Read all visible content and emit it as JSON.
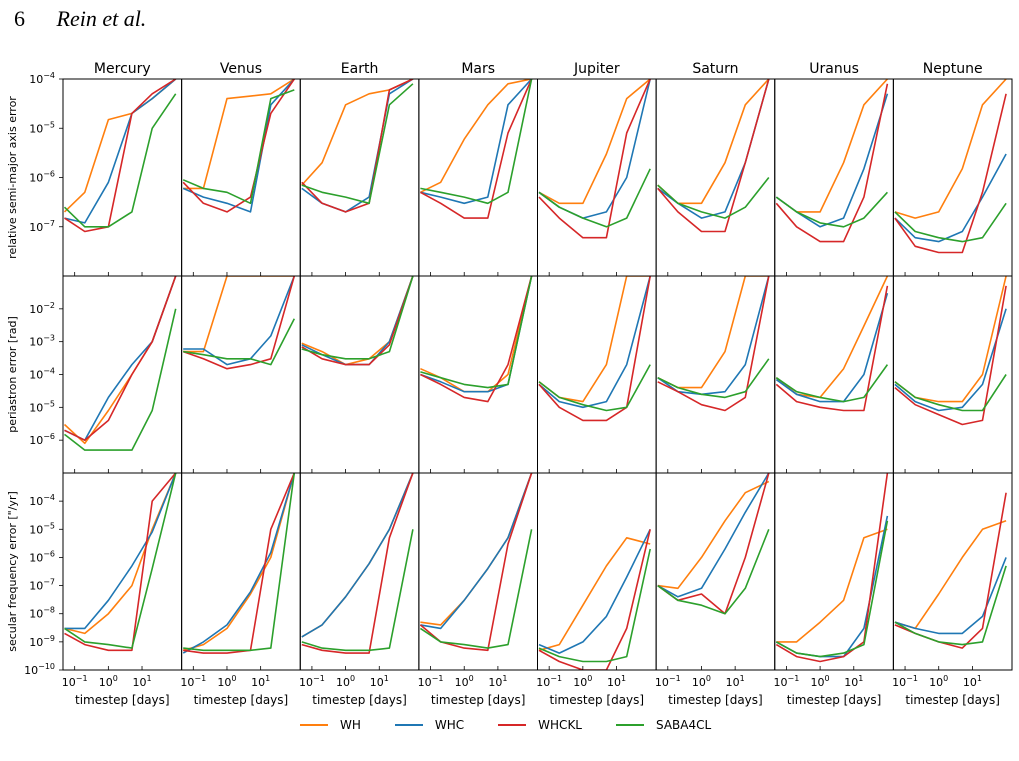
{
  "header": {
    "page_number": "6",
    "authors": "Rein et al."
  },
  "chart_data": {
    "type": "line",
    "planets": [
      "Mercury",
      "Venus",
      "Earth",
      "Mars",
      "Jupiter",
      "Saturn",
      "Uranus",
      "Neptune"
    ],
    "xlabel": "timestep [days]",
    "x_scale": "log",
    "x_ticks": [
      {
        "value": 0.1,
        "base": "10",
        "exp": "−1"
      },
      {
        "value": 1,
        "base": "10",
        "exp": "0"
      },
      {
        "value": 10,
        "base": "10",
        "exp": "1"
      }
    ],
    "series_names": [
      "WH",
      "WHC",
      "WHCKL",
      "SABA4CL"
    ],
    "colors": {
      "WH": "#ff7f0e",
      "WHC": "#1f77b4",
      "WHCKL": "#d62728",
      "SABA4CL": "#2ca02c"
    },
    "rows": [
      {
        "ylabel": "relative semi-major axis error",
        "y_scale": "log",
        "ylim": [
          1e-08,
          0.0001
        ],
        "y_ticks": [
          {
            "value": 1e-07,
            "base": "10",
            "exp": "−7"
          },
          {
            "value": 1e-06,
            "base": "10",
            "exp": "−6"
          },
          {
            "value": 1e-05,
            "base": "10",
            "exp": "−5"
          },
          {
            "value": 0.0001,
            "base": "10",
            "exp": "−4"
          }
        ]
      },
      {
        "ylabel": "periastron error [rad]",
        "y_scale": "log",
        "ylim": [
          1e-07,
          0.1
        ],
        "y_ticks": [
          {
            "value": 1e-06,
            "base": "10",
            "exp": "−6"
          },
          {
            "value": 1e-05,
            "base": "10",
            "exp": "−5"
          },
          {
            "value": 0.0001,
            "base": "10",
            "exp": "−4"
          },
          {
            "value": 0.001,
            "base": "10",
            "exp": "−3"
          },
          {
            "value": 0.01,
            "base": "10",
            "exp": "−2"
          }
        ]
      },
      {
        "ylabel": "secular frequency error [\"/yr]",
        "y_scale": "log",
        "ylim": [
          1e-10,
          0.001
        ],
        "y_ticks": [
          {
            "value": 1e-10,
            "base": "10",
            "exp": "−10"
          },
          {
            "value": 1e-09,
            "base": "10",
            "exp": "−9"
          },
          {
            "value": 1e-08,
            "base": "10",
            "exp": "−8"
          },
          {
            "value": 1e-07,
            "base": "10",
            "exp": "−7"
          },
          {
            "value": 1e-06,
            "base": "10",
            "exp": "−6"
          },
          {
            "value": 1e-05,
            "base": "10",
            "exp": "−5"
          },
          {
            "value": 0.0001,
            "base": "10",
            "exp": "−4"
          }
        ]
      }
    ],
    "xlim": [
      0.045,
      150
    ],
    "series_x": [
      0.05,
      0.2,
      1,
      5,
      20,
      100
    ],
    "panels": [
      [
        {
          "WH": [
            2e-07,
            5e-07,
            1.5e-05,
            2e-05,
            4e-05,
            0.0001
          ],
          "WHC": [
            1.5e-07,
            1.2e-07,
            8e-07,
            2e-05,
            4e-05,
            0.0001
          ],
          "WHCKL": [
            1.5e-07,
            8e-08,
            1e-07,
            2e-05,
            5e-05,
            0.0001
          ],
          "SABA4CL": [
            2.5e-07,
            1e-07,
            1e-07,
            2e-07,
            1e-05,
            5e-05
          ]
        },
        {
          "WH": [
            6e-07,
            6e-07,
            4e-05,
            4.5e-05,
            5e-05,
            0.0001
          ],
          "WHC": [
            6e-07,
            4e-07,
            3e-07,
            2e-07,
            3e-05,
            0.0001
          ],
          "WHCKL": [
            8e-07,
            3e-07,
            2e-07,
            4e-07,
            2e-05,
            0.0001
          ],
          "SABA4CL": [
            9e-07,
            6e-07,
            5e-07,
            3e-07,
            4e-05,
            6e-05
          ]
        },
        {
          "WH": [
            7e-07,
            2e-06,
            3e-05,
            5e-05,
            6e-05,
            0.0001
          ],
          "WHC": [
            6e-07,
            3e-07,
            2e-07,
            4e-07,
            5e-05,
            0.0001
          ],
          "WHCKL": [
            8e-07,
            3e-07,
            2e-07,
            3e-07,
            6e-05,
            0.0001
          ],
          "SABA4CL": [
            7e-07,
            5e-07,
            4e-07,
            3e-07,
            3e-05,
            8e-05
          ]
        },
        {
          "WH": [
            5e-07,
            8e-07,
            6e-06,
            3e-05,
            8e-05,
            0.0001
          ],
          "WHC": [
            5e-07,
            4e-07,
            3e-07,
            4e-07,
            3e-05,
            0.0001
          ],
          "WHCKL": [
            5e-07,
            3e-07,
            1.5e-07,
            1.5e-07,
            8e-06,
            0.0001
          ],
          "SABA4CL": [
            6e-07,
            5e-07,
            4e-07,
            3e-07,
            5e-07,
            0.0001
          ]
        },
        {
          "WH": [
            5e-07,
            3e-07,
            3e-07,
            3e-06,
            4e-05,
            0.0001
          ],
          "WHC": [
            5e-07,
            2.5e-07,
            1.5e-07,
            2e-07,
            1e-06,
            0.0001
          ],
          "WHCKL": [
            4e-07,
            1.5e-07,
            6e-08,
            6e-08,
            8e-06,
            0.0001
          ],
          "SABA4CL": [
            5e-07,
            2.5e-07,
            1.5e-07,
            1e-07,
            1.5e-07,
            1.5e-06
          ]
        },
        {
          "WH": [
            7e-07,
            3e-07,
            3e-07,
            2e-06,
            3e-05,
            0.0001
          ],
          "WHC": [
            6e-07,
            3e-07,
            1.5e-07,
            2e-07,
            2e-06,
            0.0001
          ],
          "WHCKL": [
            6e-07,
            2e-07,
            8e-08,
            8e-08,
            2e-06,
            0.0001
          ],
          "SABA4CL": [
            7e-07,
            3e-07,
            2e-07,
            1.5e-07,
            2.5e-07,
            1e-06
          ]
        },
        {
          "WH": [
            4e-07,
            2e-07,
            2e-07,
            2e-06,
            3e-05,
            0.0001
          ],
          "WHC": [
            4e-07,
            2e-07,
            1e-07,
            1.5e-07,
            1.5e-06,
            5e-05
          ],
          "WHCKL": [
            3e-07,
            1e-07,
            5e-08,
            5e-08,
            4e-07,
            8e-05
          ],
          "SABA4CL": [
            4e-07,
            2e-07,
            1.2e-07,
            1e-07,
            1.5e-07,
            5e-07
          ]
        },
        {
          "WH": [
            2e-07,
            1.5e-07,
            2e-07,
            1.5e-06,
            3e-05,
            0.0001
          ],
          "WHC": [
            1.5e-07,
            6e-08,
            5e-08,
            8e-08,
            4e-07,
            3e-06
          ],
          "WHCKL": [
            1.5e-07,
            4e-08,
            3e-08,
            3e-08,
            5e-07,
            5e-05
          ],
          "SABA4CL": [
            2e-07,
            8e-08,
            6e-08,
            5e-08,
            6e-08,
            3e-07
          ]
        }
      ],
      [
        {
          "WH": [
            3e-06,
            8e-07,
            8e-06,
            0.0001,
            0.001,
            0.1
          ],
          "WHC": [
            2e-06,
            1e-06,
            2e-05,
            0.0002,
            0.001,
            0.1
          ],
          "WHCKL": [
            2e-06,
            1e-06,
            4e-06,
            0.0001,
            0.001,
            0.1
          ],
          "SABA4CL": [
            1.5e-06,
            5e-07,
            5e-07,
            5e-07,
            8e-06,
            0.01
          ]
        },
        {
          "WH": [
            0.0005,
            0.0005,
            0.1,
            0.1,
            0.1,
            0.1
          ],
          "WHC": [
            0.0006,
            0.0006,
            0.0002,
            0.0003,
            0.0015,
            0.1
          ],
          "WHCKL": [
            0.0005,
            0.0003,
            0.00015,
            0.0002,
            0.0003,
            0.1
          ],
          "SABA4CL": [
            0.0005,
            0.0004,
            0.0003,
            0.0003,
            0.0002,
            0.005
          ]
        },
        {
          "WH": [
            0.0009,
            0.0005,
            0.0002,
            0.0003,
            0.001,
            0.1
          ],
          "WHC": [
            0.0008,
            0.0004,
            0.0002,
            0.0002,
            0.001,
            0.1
          ],
          "WHCKL": [
            0.0007,
            0.0003,
            0.0002,
            0.0002,
            0.0008,
            0.1
          ],
          "SABA4CL": [
            0.0006,
            0.0004,
            0.0003,
            0.0003,
            0.0005,
            0.1
          ]
        },
        {
          "WH": [
            0.00015,
            8e-05,
            3e-05,
            3e-05,
            0.0001,
            0.1
          ],
          "WHC": [
            0.0001,
            6e-05,
            3e-05,
            3e-05,
            5e-05,
            0.1
          ],
          "WHCKL": [
            0.0001,
            5e-05,
            2e-05,
            1.5e-05,
            0.0002,
            0.1
          ],
          "SABA4CL": [
            0.00012,
            8e-05,
            5e-05,
            4e-05,
            5e-05,
            0.1
          ]
        },
        {
          "WH": [
            6e-05,
            2e-05,
            1.5e-05,
            0.0002,
            0.1,
            0.1
          ],
          "WHC": [
            5e-05,
            1.5e-05,
            1e-05,
            1.5e-05,
            0.0002,
            0.1
          ],
          "WHCKL": [
            5e-05,
            1e-05,
            4e-06,
            4e-06,
            1e-05,
            0.1
          ],
          "SABA4CL": [
            6e-05,
            2e-05,
            1.2e-05,
            8e-06,
            1e-05,
            0.0002
          ]
        },
        {
          "WH": [
            8e-05,
            4e-05,
            4e-05,
            0.0005,
            0.1,
            0.1
          ],
          "WHC": [
            8e-05,
            3e-05,
            2.5e-05,
            3e-05,
            0.0002,
            0.1
          ],
          "WHCKL": [
            6e-05,
            3e-05,
            1.2e-05,
            8e-06,
            2e-05,
            0.1
          ],
          "SABA4CL": [
            8e-05,
            4e-05,
            2.5e-05,
            2e-05,
            3e-05,
            0.0003
          ]
        },
        {
          "WH": [
            8e-05,
            2.5e-05,
            2e-05,
            0.00015,
            0.003,
            0.1
          ],
          "WHC": [
            7e-05,
            2.5e-05,
            1.5e-05,
            1.5e-05,
            0.0001,
            0.03
          ],
          "WHCKL": [
            5e-05,
            1.5e-05,
            1e-05,
            8e-06,
            8e-06,
            0.05
          ],
          "SABA4CL": [
            8e-05,
            3e-05,
            2e-05,
            1.5e-05,
            2e-05,
            0.0002
          ]
        },
        {
          "WH": [
            6e-05,
            2e-05,
            1.5e-05,
            1.5e-05,
            0.0001,
            0.1
          ],
          "WHC": [
            5e-05,
            1.5e-05,
            8e-06,
            1e-05,
            5e-05,
            0.01
          ],
          "WHCKL": [
            4e-05,
            1.2e-05,
            6e-06,
            3e-06,
            4e-06,
            0.05
          ],
          "SABA4CL": [
            6e-05,
            2e-05,
            1.2e-05,
            8e-06,
            8e-06,
            0.0001
          ]
        }
      ],
      [
        {
          "WH": [
            3e-09,
            2e-09,
            1e-08,
            1e-07,
            1e-05,
            0.001
          ],
          "WHC": [
            3e-09,
            3e-09,
            3e-08,
            5e-07,
            8e-06,
            0.001
          ],
          "WHCKL": [
            2e-09,
            8e-10,
            5e-10,
            5e-10,
            0.0001,
            0.001
          ],
          "SABA4CL": [
            3e-09,
            1e-09,
            8e-10,
            6e-10,
            4e-07,
            0.001
          ]
        },
        {
          "WH": [
            5e-10,
            8e-10,
            3e-09,
            5e-08,
            1e-06,
            0.001
          ],
          "WHC": [
            4e-10,
            1e-09,
            4e-09,
            6e-08,
            1.5e-06,
            0.001
          ],
          "WHCKL": [
            5e-10,
            4e-10,
            4e-10,
            5e-10,
            1e-05,
            0.001
          ],
          "SABA4CL": [
            6e-10,
            5e-10,
            5e-10,
            5e-10,
            6e-10,
            0.001
          ]
        },
        {
          "WH": [
            1.5e-09,
            4e-09,
            4e-08,
            6e-07,
            1e-05,
            0.001
          ],
          "WHC": [
            1.5e-09,
            4e-09,
            4e-08,
            6e-07,
            1e-05,
            0.001
          ],
          "WHCKL": [
            8e-10,
            5e-10,
            4e-10,
            4e-10,
            5e-06,
            0.001
          ],
          "SABA4CL": [
            1e-09,
            6e-10,
            5e-10,
            5e-10,
            6e-10,
            1e-05
          ]
        },
        {
          "WH": [
            5e-09,
            4e-09,
            3e-08,
            4e-07,
            5e-06,
            0.001
          ],
          "WHC": [
            4e-09,
            3e-09,
            3e-08,
            4e-07,
            5e-06,
            0.001
          ],
          "WHCKL": [
            4e-09,
            1e-09,
            6e-10,
            5e-10,
            3e-06,
            0.001
          ],
          "SABA4CL": [
            3e-09,
            1e-09,
            8e-10,
            6e-10,
            8e-10,
            1e-05
          ]
        },
        {
          "WH": [
            5e-10,
            8e-10,
            2e-08,
            5e-07,
            5e-06,
            3e-06
          ],
          "WHC": [
            8e-10,
            4e-10,
            1e-09,
            8e-09,
            2e-07,
            1e-05
          ],
          "WHCKL": [
            5e-10,
            2e-10,
            1e-10,
            1e-10,
            3e-09,
            1e-05
          ],
          "SABA4CL": [
            6e-10,
            3e-10,
            2e-10,
            2e-10,
            3e-10,
            2e-06
          ]
        },
        {
          "WH": [
            1e-07,
            8e-08,
            1e-06,
            2e-05,
            0.0002,
            0.0005
          ],
          "WHC": [
            1e-07,
            4e-08,
            8e-08,
            2e-06,
            4e-05,
            0.001
          ],
          "WHCKL": [
            1e-07,
            3e-08,
            5e-08,
            1e-08,
            1e-06,
            0.001
          ],
          "SABA4CL": [
            1e-07,
            3e-08,
            2e-08,
            1e-08,
            8e-08,
            1e-05
          ]
        },
        {
          "WH": [
            1e-09,
            1e-09,
            5e-09,
            3e-08,
            5e-06,
            1e-05
          ],
          "WHC": [
            1e-09,
            4e-10,
            3e-10,
            3e-10,
            3e-09,
            3e-05
          ],
          "WHCKL": [
            8e-10,
            3e-10,
            2e-10,
            3e-10,
            1e-09,
            0.001
          ],
          "SABA4CL": [
            1e-09,
            4e-10,
            3e-10,
            4e-10,
            8e-10,
            2e-05
          ]
        },
        {
          "WH": [
            5e-09,
            3e-09,
            5e-08,
            1e-06,
            1e-05,
            2e-05
          ],
          "WHC": [
            5e-09,
            3e-09,
            2e-09,
            2e-09,
            8e-09,
            1e-06
          ],
          "WHCKL": [
            4e-09,
            2e-09,
            1e-09,
            6e-10,
            3e-09,
            0.0002
          ],
          "SABA4CL": [
            5e-09,
            2e-09,
            1e-09,
            8e-10,
            1e-09,
            5e-07
          ]
        }
      ]
    ]
  }
}
